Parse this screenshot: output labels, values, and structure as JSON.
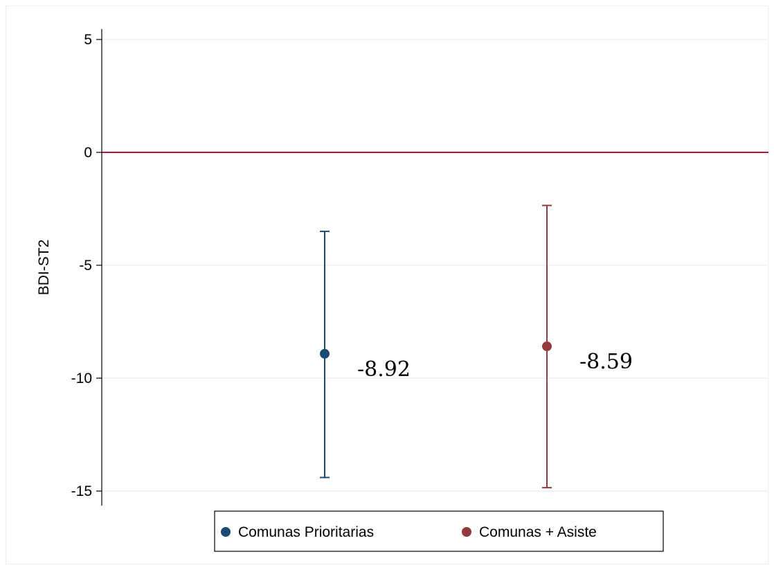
{
  "chart_data": {
    "type": "scatter",
    "ylabel": "BDI-ST2",
    "xlabel": "",
    "title": "",
    "ylim": [
      -15.5,
      5.5
    ],
    "yticks": [
      5,
      0,
      -5,
      -10,
      -15
    ],
    "ytick_labels": [
      "5",
      "0",
      "-5",
      "-10",
      "-15"
    ],
    "reference_line": {
      "y": 0,
      "color": "#b5163a"
    },
    "grid": true,
    "legend_position": "bottom",
    "series": [
      {
        "name": "Comunas Prioritarias",
        "color": "#1b4b72",
        "value": -8.92,
        "ci_low": -14.4,
        "ci_high": -3.5,
        "label": "-8.92"
      },
      {
        "name": "Comunas + Asiste",
        "color": "#923a3e",
        "value": -8.59,
        "ci_low": -14.85,
        "ci_high": -2.35,
        "label": "-8.59"
      }
    ]
  }
}
